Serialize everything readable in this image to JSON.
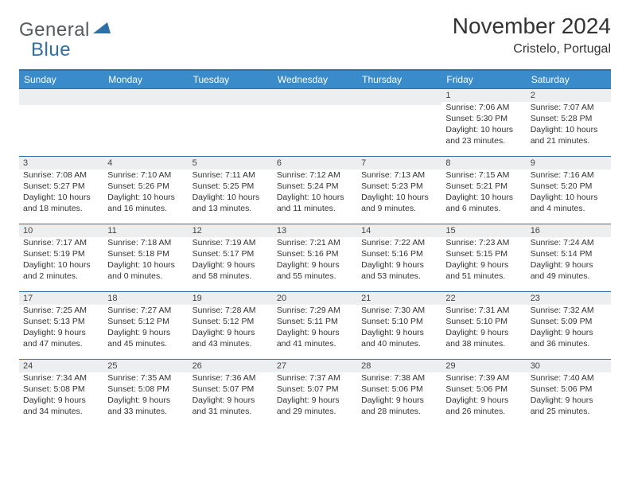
{
  "brand": {
    "general": "General",
    "blue": "Blue"
  },
  "header": {
    "title": "November 2024",
    "location": "Cristelo, Portugal"
  },
  "styling": {
    "header_bg": "#3a8bc9",
    "header_text": "#ffffff",
    "border_color": "#2f6fa8",
    "daynum_bg": "#eceeef",
    "text_color": "#333333",
    "title_fontsize": 28,
    "location_fontsize": 16,
    "dayheader_fontsize": 12,
    "cell_fontsize": 10.5,
    "page_bg": "#ffffff",
    "logo_tri_color": "#2f6fa8"
  },
  "day_headers": [
    "Sunday",
    "Monday",
    "Tuesday",
    "Wednesday",
    "Thursday",
    "Friday",
    "Saturday"
  ],
  "weeks": [
    [
      null,
      null,
      null,
      null,
      null,
      {
        "n": "1",
        "sr": "Sunrise: 7:06 AM",
        "ss": "Sunset: 5:30 PM",
        "dl": "Daylight: 10 hours and 23 minutes."
      },
      {
        "n": "2",
        "sr": "Sunrise: 7:07 AM",
        "ss": "Sunset: 5:28 PM",
        "dl": "Daylight: 10 hours and 21 minutes."
      }
    ],
    [
      {
        "n": "3",
        "sr": "Sunrise: 7:08 AM",
        "ss": "Sunset: 5:27 PM",
        "dl": "Daylight: 10 hours and 18 minutes."
      },
      {
        "n": "4",
        "sr": "Sunrise: 7:10 AM",
        "ss": "Sunset: 5:26 PM",
        "dl": "Daylight: 10 hours and 16 minutes."
      },
      {
        "n": "5",
        "sr": "Sunrise: 7:11 AM",
        "ss": "Sunset: 5:25 PM",
        "dl": "Daylight: 10 hours and 13 minutes."
      },
      {
        "n": "6",
        "sr": "Sunrise: 7:12 AM",
        "ss": "Sunset: 5:24 PM",
        "dl": "Daylight: 10 hours and 11 minutes."
      },
      {
        "n": "7",
        "sr": "Sunrise: 7:13 AM",
        "ss": "Sunset: 5:23 PM",
        "dl": "Daylight: 10 hours and 9 minutes."
      },
      {
        "n": "8",
        "sr": "Sunrise: 7:15 AM",
        "ss": "Sunset: 5:21 PM",
        "dl": "Daylight: 10 hours and 6 minutes."
      },
      {
        "n": "9",
        "sr": "Sunrise: 7:16 AM",
        "ss": "Sunset: 5:20 PM",
        "dl": "Daylight: 10 hours and 4 minutes."
      }
    ],
    [
      {
        "n": "10",
        "sr": "Sunrise: 7:17 AM",
        "ss": "Sunset: 5:19 PM",
        "dl": "Daylight: 10 hours and 2 minutes."
      },
      {
        "n": "11",
        "sr": "Sunrise: 7:18 AM",
        "ss": "Sunset: 5:18 PM",
        "dl": "Daylight: 10 hours and 0 minutes."
      },
      {
        "n": "12",
        "sr": "Sunrise: 7:19 AM",
        "ss": "Sunset: 5:17 PM",
        "dl": "Daylight: 9 hours and 58 minutes."
      },
      {
        "n": "13",
        "sr": "Sunrise: 7:21 AM",
        "ss": "Sunset: 5:16 PM",
        "dl": "Daylight: 9 hours and 55 minutes."
      },
      {
        "n": "14",
        "sr": "Sunrise: 7:22 AM",
        "ss": "Sunset: 5:16 PM",
        "dl": "Daylight: 9 hours and 53 minutes."
      },
      {
        "n": "15",
        "sr": "Sunrise: 7:23 AM",
        "ss": "Sunset: 5:15 PM",
        "dl": "Daylight: 9 hours and 51 minutes."
      },
      {
        "n": "16",
        "sr": "Sunrise: 7:24 AM",
        "ss": "Sunset: 5:14 PM",
        "dl": "Daylight: 9 hours and 49 minutes."
      }
    ],
    [
      {
        "n": "17",
        "sr": "Sunrise: 7:25 AM",
        "ss": "Sunset: 5:13 PM",
        "dl": "Daylight: 9 hours and 47 minutes."
      },
      {
        "n": "18",
        "sr": "Sunrise: 7:27 AM",
        "ss": "Sunset: 5:12 PM",
        "dl": "Daylight: 9 hours and 45 minutes."
      },
      {
        "n": "19",
        "sr": "Sunrise: 7:28 AM",
        "ss": "Sunset: 5:12 PM",
        "dl": "Daylight: 9 hours and 43 minutes."
      },
      {
        "n": "20",
        "sr": "Sunrise: 7:29 AM",
        "ss": "Sunset: 5:11 PM",
        "dl": "Daylight: 9 hours and 41 minutes."
      },
      {
        "n": "21",
        "sr": "Sunrise: 7:30 AM",
        "ss": "Sunset: 5:10 PM",
        "dl": "Daylight: 9 hours and 40 minutes."
      },
      {
        "n": "22",
        "sr": "Sunrise: 7:31 AM",
        "ss": "Sunset: 5:10 PM",
        "dl": "Daylight: 9 hours and 38 minutes."
      },
      {
        "n": "23",
        "sr": "Sunrise: 7:32 AM",
        "ss": "Sunset: 5:09 PM",
        "dl": "Daylight: 9 hours and 36 minutes."
      }
    ],
    [
      {
        "n": "24",
        "sr": "Sunrise: 7:34 AM",
        "ss": "Sunset: 5:08 PM",
        "dl": "Daylight: 9 hours and 34 minutes."
      },
      {
        "n": "25",
        "sr": "Sunrise: 7:35 AM",
        "ss": "Sunset: 5:08 PM",
        "dl": "Daylight: 9 hours and 33 minutes."
      },
      {
        "n": "26",
        "sr": "Sunrise: 7:36 AM",
        "ss": "Sunset: 5:07 PM",
        "dl": "Daylight: 9 hours and 31 minutes."
      },
      {
        "n": "27",
        "sr": "Sunrise: 7:37 AM",
        "ss": "Sunset: 5:07 PM",
        "dl": "Daylight: 9 hours and 29 minutes."
      },
      {
        "n": "28",
        "sr": "Sunrise: 7:38 AM",
        "ss": "Sunset: 5:06 PM",
        "dl": "Daylight: 9 hours and 28 minutes."
      },
      {
        "n": "29",
        "sr": "Sunrise: 7:39 AM",
        "ss": "Sunset: 5:06 PM",
        "dl": "Daylight: 9 hours and 26 minutes."
      },
      {
        "n": "30",
        "sr": "Sunrise: 7:40 AM",
        "ss": "Sunset: 5:06 PM",
        "dl": "Daylight: 9 hours and 25 minutes."
      }
    ]
  ]
}
